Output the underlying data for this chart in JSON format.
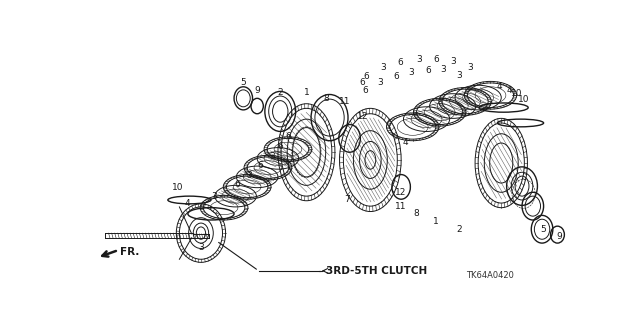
{
  "background_color": "#ffffff",
  "line_color": "#1a1a1a",
  "fig_width": 6.4,
  "fig_height": 3.19,
  "label_3rd5th": "3RD-5TH CLUTCH",
  "label_fr": "FR.",
  "label_tk": "TK64A0420"
}
